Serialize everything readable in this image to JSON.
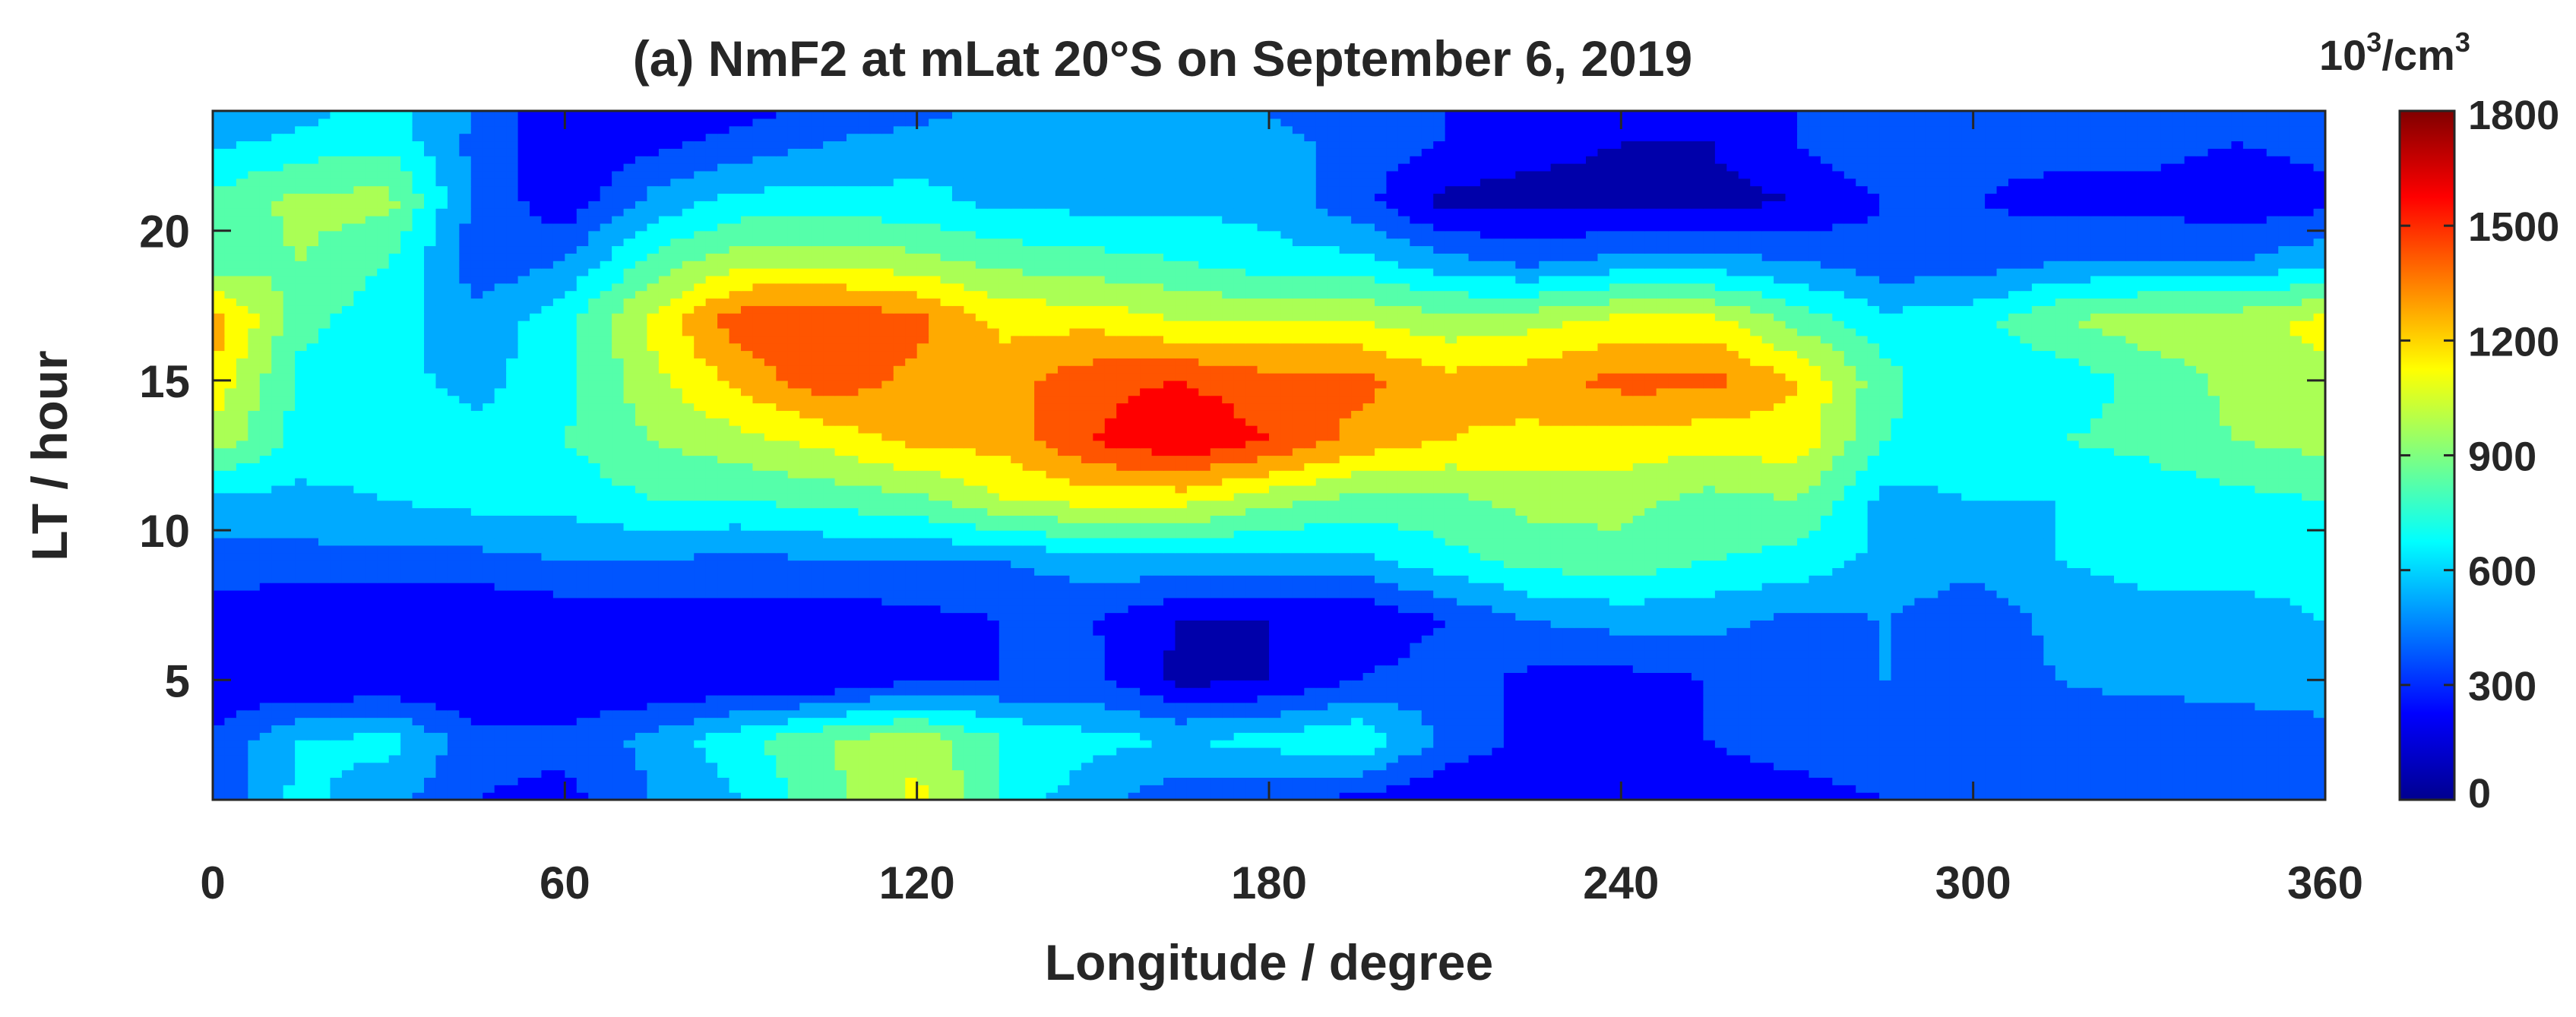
{
  "chart_data": {
    "type": "heatmap",
    "title": "(a) NmF2 at mLat 20°S on September 6, 2019",
    "xlabel": "Longitude / degree",
    "ylabel": "LT / hour",
    "xlim": [
      0,
      360
    ],
    "ylim": [
      1,
      24
    ],
    "x_ticks": [
      "0",
      "60",
      "120",
      "180",
      "240",
      "300",
      "360"
    ],
    "x_tick_values": [
      0,
      60,
      120,
      180,
      240,
      300,
      360
    ],
    "y_ticks": [
      "5",
      "10",
      "15",
      "20"
    ],
    "y_tick_values": [
      5,
      10,
      15,
      20
    ],
    "colorbar": {
      "unit_base": "10",
      "unit_exp1": "3",
      "unit_mid": "/cm",
      "unit_exp2": "3",
      "range": [
        0,
        1800
      ],
      "ticks": [
        "0",
        "300",
        "600",
        "900",
        "1200",
        "1500",
        "1800"
      ],
      "tick_values": [
        0,
        300,
        600,
        900,
        1200,
        1500,
        1800
      ],
      "colormap": "jet"
    },
    "z_grid_longitude": [
      0,
      15,
      30,
      45,
      60,
      75,
      90,
      105,
      120,
      135,
      150,
      165,
      180,
      195,
      210,
      225,
      240,
      255,
      270,
      285,
      300,
      315,
      330,
      345,
      360
    ],
    "z_grid_lt": [
      1,
      3,
      5,
      7,
      9,
      11,
      13,
      15,
      17,
      19,
      21,
      23,
      24
    ],
    "z_values": [
      [
        350,
        650,
        500,
        300,
        250,
        450,
        600,
        850,
        1100,
        700,
        500,
        350,
        350,
        250,
        150,
        200,
        250,
        250,
        250,
        300,
        350,
        350,
        300,
        300,
        400
      ],
      [
        350,
        600,
        650,
        350,
        350,
        500,
        700,
        900,
        1000,
        750,
        650,
        600,
        650,
        750,
        400,
        250,
        300,
        300,
        350,
        400,
        400,
        400,
        300,
        300,
        350
      ],
      [
        150,
        150,
        150,
        150,
        150,
        150,
        150,
        150,
        300,
        300,
        350,
        100,
        150,
        300,
        400,
        250,
        250,
        300,
        350,
        450,
        350,
        450,
        500,
        550,
        600
      ],
      [
        200,
        150,
        150,
        150,
        200,
        200,
        250,
        200,
        250,
        300,
        300,
        150,
        150,
        150,
        300,
        450,
        500,
        500,
        400,
        450,
        350,
        500,
        550,
        550,
        600
      ],
      [
        400,
        400,
        400,
        400,
        450,
        450,
        400,
        450,
        450,
        450,
        550,
        550,
        550,
        550,
        700,
        800,
        850,
        750,
        700,
        550,
        500,
        600,
        650,
        650,
        650
      ],
      [
        550,
        550,
        600,
        650,
        650,
        750,
        750,
        800,
        850,
        1050,
        1100,
        1100,
        950,
        850,
        850,
        950,
        950,
        850,
        900,
        550,
        600,
        600,
        650,
        700,
        750
      ],
      [
        1000,
        700,
        700,
        650,
        750,
        900,
        1000,
        1100,
        1250,
        1250,
        1500,
        1650,
        1500,
        1300,
        1200,
        1150,
        1150,
        1100,
        1150,
        750,
        650,
        750,
        800,
        900,
        950
      ],
      [
        1150,
        700,
        650,
        550,
        700,
        1000,
        1250,
        1450,
        1300,
        1300,
        1450,
        1500,
        1400,
        1400,
        1250,
        1300,
        1400,
        1400,
        1200,
        800,
        600,
        650,
        800,
        950,
        1000
      ],
      [
        1300,
        800,
        650,
        500,
        700,
        1100,
        1450,
        1500,
        1400,
        1150,
        1150,
        1050,
        1050,
        1050,
        950,
        1000,
        1100,
        1100,
        850,
        650,
        700,
        900,
        1000,
        1000,
        1100
      ],
      [
        800,
        900,
        750,
        350,
        450,
        800,
        1000,
        1000,
        950,
        850,
        800,
        750,
        650,
        650,
        500,
        400,
        500,
        500,
        450,
        350,
        350,
        450,
        450,
        450,
        550
      ],
      [
        800,
        950,
        950,
        400,
        200,
        500,
        650,
        650,
        650,
        550,
        550,
        550,
        550,
        350,
        100,
        100,
        100,
        100,
        150,
        300,
        300,
        250,
        250,
        200,
        250
      ],
      [
        550,
        650,
        700,
        400,
        150,
        250,
        350,
        450,
        500,
        600,
        550,
        500,
        500,
        400,
        300,
        200,
        150,
        150,
        300,
        450,
        350,
        350,
        350,
        300,
        350
      ],
      [
        450,
        550,
        650,
        450,
        150,
        150,
        250,
        350,
        400,
        500,
        500,
        450,
        450,
        350,
        300,
        250,
        200,
        200,
        300,
        400,
        350,
        350,
        300,
        300,
        300
      ]
    ]
  }
}
